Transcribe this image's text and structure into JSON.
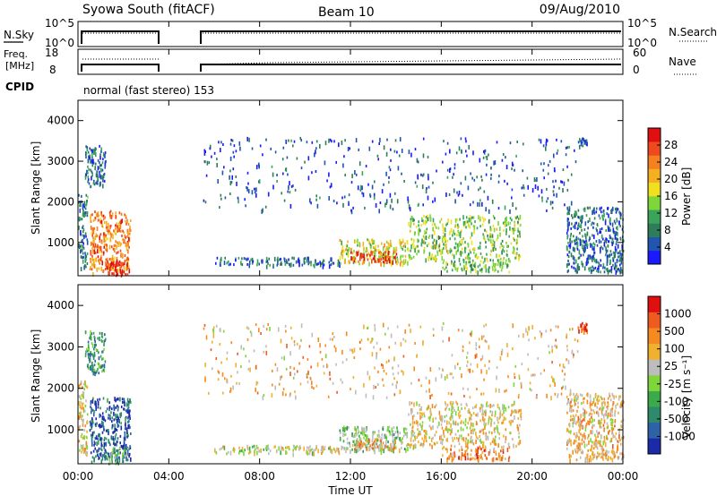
{
  "header": {
    "title": "Syowa South (fitACF)",
    "beam": "Beam 10",
    "date": "09/Aug/2010"
  },
  "noise_panel": {
    "left_label": "N.Sky",
    "right_label": "N.Search",
    "left_ticks": [
      "10^5",
      "10^0"
    ],
    "right_ticks": [
      "10^5",
      "10^0"
    ]
  },
  "freq_panel": {
    "left_label_1": "Freq.",
    "left_label_2": "[MHz]",
    "left_ticks": [
      "18",
      "8"
    ],
    "right_label": "Nave",
    "right_ticks": [
      "60",
      "0"
    ]
  },
  "cpid": {
    "label": "CPID",
    "text": "normal (fast stereo) 153"
  },
  "x_axis": {
    "label": "Time UT",
    "ticks": [
      "00:00",
      "04:00",
      "08:00",
      "12:00",
      "16:00",
      "20:00",
      "00:00"
    ]
  },
  "chart_data": [
    {
      "type": "heatmap",
      "name": "power",
      "ylabel": "Slant Range [km]",
      "yticks": [
        "1000",
        "2000",
        "3000",
        "4000"
      ],
      "ylim": [
        180,
        4500
      ],
      "xlim_hours": [
        0,
        24
      ],
      "colorbar": {
        "label": "Power [dB]",
        "ticks": [
          "4",
          "8",
          "12",
          "16",
          "20",
          "24",
          "28"
        ],
        "colors": [
          "#1a1aff",
          "#2156b0",
          "#2e7d5a",
          "#3aa55a",
          "#7fd63a",
          "#f0e020",
          "#f5b021",
          "#f58020",
          "#ef4a1f",
          "#e01010"
        ]
      },
      "clusters": [
        {
          "t": [
            0.0,
            0.4
          ],
          "r": [
            400,
            2200
          ],
          "level": 0.25
        },
        {
          "t": [
            0.5,
            2.3
          ],
          "r": [
            250,
            1800
          ],
          "level": 0.75
        },
        {
          "t": [
            1.2,
            2.2
          ],
          "r": [
            200,
            600
          ],
          "level": 0.95
        },
        {
          "t": [
            0.3,
            1.2
          ],
          "r": [
            2400,
            3400
          ],
          "level": 0.2
        },
        {
          "t": [
            6.0,
            11.5
          ],
          "r": [
            450,
            650
          ],
          "level": 0.2
        },
        {
          "t": [
            11.5,
            14.5
          ],
          "r": [
            500,
            1100
          ],
          "level": 0.55
        },
        {
          "t": [
            12.0,
            14.0
          ],
          "r": [
            550,
            800
          ],
          "level": 0.95
        },
        {
          "t": [
            14.5,
            19.5
          ],
          "r": [
            600,
            1700
          ],
          "level": 0.45
        },
        {
          "t": [
            16.0,
            19.0
          ],
          "r": [
            300,
            600
          ],
          "level": 0.4
        },
        {
          "t": [
            21.5,
            24.0
          ],
          "r": [
            300,
            1900
          ],
          "level": 0.2
        },
        {
          "t": [
            22.0,
            22.4
          ],
          "r": [
            3400,
            3600
          ],
          "level": 0.15
        },
        {
          "t": [
            5.5,
            22.0
          ],
          "r": [
            1800,
            3600
          ],
          "level": 0.15
        }
      ]
    },
    {
      "type": "heatmap",
      "name": "velocity",
      "ylabel": "Slant Range [km]",
      "yticks": [
        "1000",
        "2000",
        "3000",
        "4000"
      ],
      "ylim": [
        180,
        4500
      ],
      "xlim_hours": [
        0,
        24
      ],
      "colorbar": {
        "label": "Velocity [m s⁻¹]",
        "ticks": [
          "1000",
          "500",
          "100",
          "25",
          "-25",
          "-100",
          "-500",
          "-1000"
        ],
        "colors": [
          "#1a2aa8",
          "#2e62a8",
          "#2e8a6a",
          "#3aaa4a",
          "#7fd63a",
          "#bdbdbd",
          "#f0b030",
          "#f58a20",
          "#ef5a1f",
          "#e01010"
        ]
      },
      "clusters": [
        {
          "t": [
            0.0,
            0.4
          ],
          "r": [
            400,
            2200
          ],
          "level": 0.6
        },
        {
          "t": [
            0.5,
            2.3
          ],
          "r": [
            250,
            1800
          ],
          "level": 0.15
        },
        {
          "t": [
            1.2,
            2.2
          ],
          "r": [
            200,
            600
          ],
          "level": 0.35
        },
        {
          "t": [
            0.3,
            1.2
          ],
          "r": [
            2400,
            3400
          ],
          "level": 0.3
        },
        {
          "t": [
            6.0,
            11.5
          ],
          "r": [
            450,
            650
          ],
          "level": 0.55
        },
        {
          "t": [
            11.5,
            14.5
          ],
          "r": [
            500,
            1100
          ],
          "level": 0.45
        },
        {
          "t": [
            12.0,
            14.0
          ],
          "r": [
            550,
            800
          ],
          "level": 0.7
        },
        {
          "t": [
            14.5,
            19.5
          ],
          "r": [
            600,
            1700
          ],
          "level": 0.6
        },
        {
          "t": [
            16.0,
            19.0
          ],
          "r": [
            300,
            600
          ],
          "level": 0.75
        },
        {
          "t": [
            21.5,
            24.0
          ],
          "r": [
            300,
            1900
          ],
          "level": 0.65
        },
        {
          "t": [
            22.0,
            22.4
          ],
          "r": [
            3400,
            3600
          ],
          "level": 0.85
        },
        {
          "t": [
            5.5,
            22.0
          ],
          "r": [
            1800,
            3600
          ],
          "level": 0.65
        }
      ]
    }
  ]
}
